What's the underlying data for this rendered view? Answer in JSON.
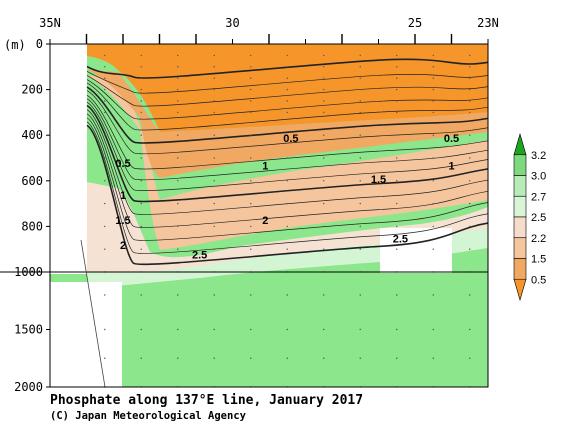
{
  "chart_data": {
    "type": "heatmap",
    "title": "Phosphate along 137°E line, January 2017",
    "credit": "(C) Japan Meteorological Agency",
    "x_axis": {
      "ticks": [
        {
          "value": 35,
          "label": "35N"
        },
        {
          "value": 30,
          "label": "30"
        },
        {
          "value": 25,
          "label": "25"
        },
        {
          "value": 23,
          "label": "23N"
        }
      ],
      "range": [
        35,
        23
      ]
    },
    "y_axis": {
      "unit_label": "(m)",
      "ticks_upper": [
        {
          "value": 0,
          "label": "0"
        },
        {
          "value": 200,
          "label": "200"
        },
        {
          "value": 400,
          "label": "400"
        },
        {
          "value": 600,
          "label": "600"
        },
        {
          "value": 800,
          "label": "800"
        },
        {
          "value": 1000,
          "label": "1000"
        }
      ],
      "ticks_lower": [
        {
          "value": 1500,
          "label": "1500"
        },
        {
          "value": 2000,
          "label": "2000"
        }
      ],
      "range": [
        0,
        2000
      ],
      "scale_break": 1000
    },
    "colorbar": {
      "labels": [
        "3.2",
        "3.0",
        "2.7",
        "2.5",
        "2.2",
        "1.5",
        "0.5"
      ],
      "colors": [
        "#1fa31f",
        "#7fd97f",
        "#b8edb8",
        "#d8f5d8",
        "#f5dccb",
        "#f5c69e",
        "#f0a862",
        "#f5952a"
      ]
    },
    "contour_labels": [
      {
        "text": "0.5",
        "lat": 28.4,
        "depth": 430
      },
      {
        "text": "0.5",
        "lat": 24.0,
        "depth": 430
      },
      {
        "text": "0.5",
        "lat": 33.0,
        "depth": 540
      },
      {
        "text": "1",
        "lat": 29.1,
        "depth": 550
      },
      {
        "text": "1",
        "lat": 24.0,
        "depth": 550
      },
      {
        "text": "1.5",
        "lat": 26.0,
        "depth": 610
      },
      {
        "text": "1",
        "lat": 33.0,
        "depth": 680
      },
      {
        "text": "1.5",
        "lat": 33.0,
        "depth": 790
      },
      {
        "text": "2",
        "lat": 29.1,
        "depth": 790
      },
      {
        "text": "2",
        "lat": 33.0,
        "depth": 900
      },
      {
        "text": "2.5",
        "lat": 30.9,
        "depth": 940
      },
      {
        "text": "2.5",
        "lat": 25.4,
        "depth": 870
      }
    ],
    "station_lats": [
      34.0,
      33.0,
      32.0,
      31.0,
      29.0,
      27.0,
      25.0,
      24.0
    ]
  }
}
